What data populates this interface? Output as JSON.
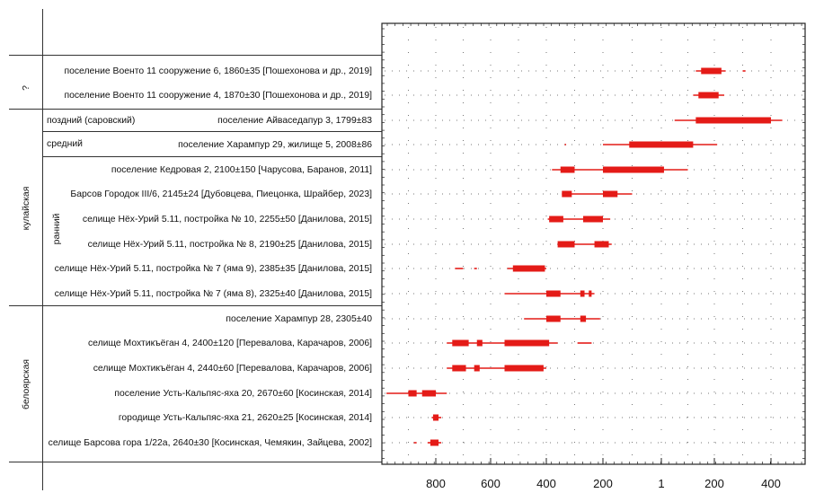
{
  "chart_data": {
    "type": "range-bar",
    "title": "",
    "xlabel": "",
    "ylabel": "",
    "x_axis": {
      "tick_labels": [
        "800",
        "600",
        "400",
        "200",
        "1",
        "200",
        "400"
      ],
      "note": "calendar scale: BC years on the left of 1, AD years on the right; signed values below (BC negative)",
      "xlim": [
        -1000,
        500
      ]
    },
    "groups": [
      {
        "label": "?",
        "sublabel": "",
        "rows": [
          0,
          1
        ]
      },
      {
        "label": "кулайская",
        "sublabel": "",
        "rows": [
          2,
          3,
          4,
          5,
          6,
          7,
          8,
          9
        ]
      },
      {
        "label": "",
        "sublabel": "поздний (саровский)",
        "rows": [
          2
        ]
      },
      {
        "label": "",
        "sublabel": "средний",
        "rows": [
          3
        ]
      },
      {
        "label": "",
        "sublabel": "ранний",
        "rows": [
          4,
          5,
          6,
          7,
          8,
          9
        ]
      },
      {
        "label": "белоярская",
        "sublabel": "",
        "rows": [
          10,
          11,
          12,
          13,
          14,
          15
        ]
      }
    ],
    "rows": [
      {
        "label": "поселение Военто 11 сооружение 6, 1860±35 [Пошехонова и др., 2019]",
        "thin": [
          [
            130,
            240
          ],
          [
            300,
            310
          ]
        ],
        "thick": [
          [
            150,
            225
          ]
        ]
      },
      {
        "label": "поселение Военто 11 сооружение 4, 1870±30 [Пошехонова и др., 2019]",
        "thin": [
          [
            120,
            235
          ]
        ],
        "thick": [
          [
            140,
            215
          ]
        ]
      },
      {
        "label": "поселение Айваседапур 3, 1799±83",
        "thin": [
          [
            50,
            440
          ]
        ],
        "thick": [
          [
            130,
            400
          ]
        ]
      },
      {
        "label": "поселение Харампур 29, жилище 5, 2008±86",
        "thin": [
          [
            -335,
            -330
          ],
          [
            -200,
            210
          ]
        ],
        "thick": [
          [
            -110,
            120
          ]
        ]
      },
      {
        "label": "поселение Кедровая 2, 2100±150 [Чарусова, Баранов, 2011]",
        "thin": [
          [
            -380,
            100
          ]
        ],
        "thick": [
          [
            -350,
            -300
          ],
          [
            -200,
            10
          ]
        ]
      },
      {
        "label": "Барсов Городок III/6, 2145±24 [Дубовцева, Пиецонка, Шрайбер, 2023]",
        "thin": [
          [
            -345,
            -100
          ]
        ],
        "thick": [
          [
            -345,
            -310
          ],
          [
            -200,
            -150
          ]
        ]
      },
      {
        "label": "селище Нёх-Урий 5.11, постройка № 10, 2255±50 [Данилова, 2015]",
        "thin": [
          [
            -395,
            -175
          ]
        ],
        "thick": [
          [
            -390,
            -340
          ],
          [
            -270,
            -200
          ]
        ]
      },
      {
        "label": "селище Нёх-Урий 5.11, постройка № 8, 2190±25 [Данилова, 2015]",
        "thin": [
          [
            -360,
            -170
          ]
        ],
        "thick": [
          [
            -360,
            -300
          ],
          [
            -230,
            -180
          ]
        ]
      },
      {
        "label": "селище Нёх-Урий 5.11, постройка № 7 (яма 9), 2385±35 [Данилова, 2015]",
        "thin": [
          [
            -730,
            -700
          ],
          [
            -660,
            -650
          ],
          [
            -540,
            -400
          ]
        ],
        "thick": [
          [
            -520,
            -405
          ]
        ]
      },
      {
        "label": "селище Нёх-Урий 5.11, постройка № 7 (яма 8), 2325±40 [Данилова, 2015]",
        "thin": [
          [
            -550,
            -230
          ]
        ],
        "thick": [
          [
            -400,
            -350
          ],
          [
            -280,
            -265
          ],
          [
            -250,
            -240
          ]
        ]
      },
      {
        "label": "поселение Харампур 28, 2305±40",
        "thin": [
          [
            -480,
            -210
          ]
        ],
        "thick": [
          [
            -400,
            -350
          ],
          [
            -280,
            -260
          ]
        ]
      },
      {
        "label": "селище Мохтикъёган 4, 2400±120 [Перевалова, Карачаров, 2006]",
        "thin": [
          [
            -760,
            -360
          ],
          [
            -290,
            -240
          ]
        ],
        "thick": [
          [
            -740,
            -680
          ],
          [
            -650,
            -630
          ],
          [
            -550,
            -390
          ]
        ]
      },
      {
        "label": "селище Мохтикъёган 4, 2440±60 [Перевалова, Карачаров, 2006]",
        "thin": [
          [
            -760,
            -400
          ]
        ],
        "thick": [
          [
            -740,
            -690
          ],
          [
            -660,
            -640
          ],
          [
            -550,
            -410
          ]
        ]
      },
      {
        "label": "поселение Усть-Кальпяс-яха 20, 2670±60 [Косинская, 2014]",
        "thin": [
          [
            -980,
            -760
          ]
        ],
        "thick": [
          [
            -900,
            -870
          ],
          [
            -850,
            -800
          ]
        ]
      },
      {
        "label": "городище Усть-Кальпяс-яха 21, 2620±25 [Косинская, 2014]",
        "thin": [
          [
            -815,
            -780
          ]
        ],
        "thick": [
          [
            -810,
            -790
          ]
        ]
      },
      {
        "label": "селище Барсова гора 1/22а, 2640±30 [Косинская, Чемякин, Зайцева, 2002]",
        "thin": [
          [
            -880,
            -870
          ],
          [
            -830,
            -780
          ]
        ],
        "thick": [
          [
            -820,
            -790
          ]
        ]
      }
    ]
  },
  "colors": {
    "series": "#e41b17",
    "grid": "#777777",
    "lines": "#333333"
  }
}
